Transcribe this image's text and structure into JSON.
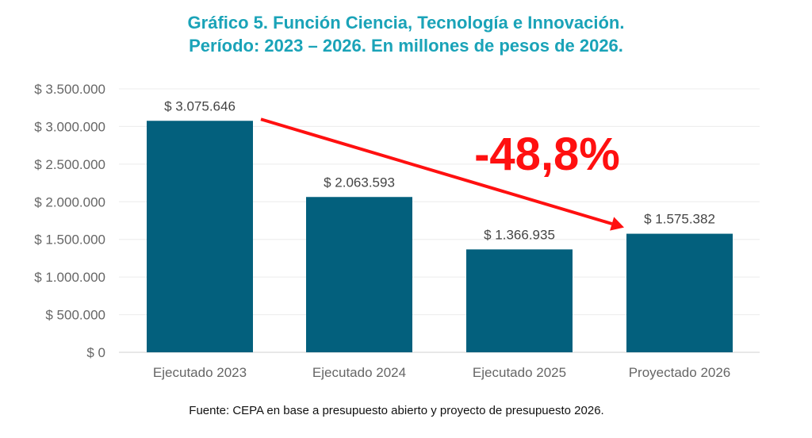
{
  "chart_data": {
    "type": "bar",
    "title_line1": "Gráfico 5. Función Ciencia, Tecnología e Innovación.",
    "title_line2": "Período: 2023 – 2026. En millones de pesos de 2026.",
    "categories": [
      "Ejecutado 2023",
      "Ejecutado 2024",
      "Ejecutado 2025",
      "Proyectado 2026"
    ],
    "values": [
      3075646,
      2063593,
      1366935,
      1575382
    ],
    "value_labels": [
      "$ 3.075.646",
      "$ 2.063.593",
      "$ 1.366.935",
      "$ 1.575.382"
    ],
    "y_ticks": [
      0,
      500000,
      1000000,
      1500000,
      2000000,
      2500000,
      3000000,
      3500000
    ],
    "y_tick_labels": [
      "$ 0",
      "$ 500.000",
      "$ 1.000.000",
      "$ 1.500.000",
      "$ 2.000.000",
      "$ 2.500.000",
      "$ 3.000.000",
      "$ 3.500.000"
    ],
    "ylim": [
      0,
      3500000
    ],
    "grid": true,
    "bar_color": "#03607d",
    "annotation": {
      "text": "-48,8%",
      "color": "#ff1010",
      "from_category": "Ejecutado 2023",
      "to_category": "Proyectado 2026"
    }
  },
  "source_text": "Fuente: CEPA en base a presupuesto abierto y proyecto de presupuesto 2026."
}
